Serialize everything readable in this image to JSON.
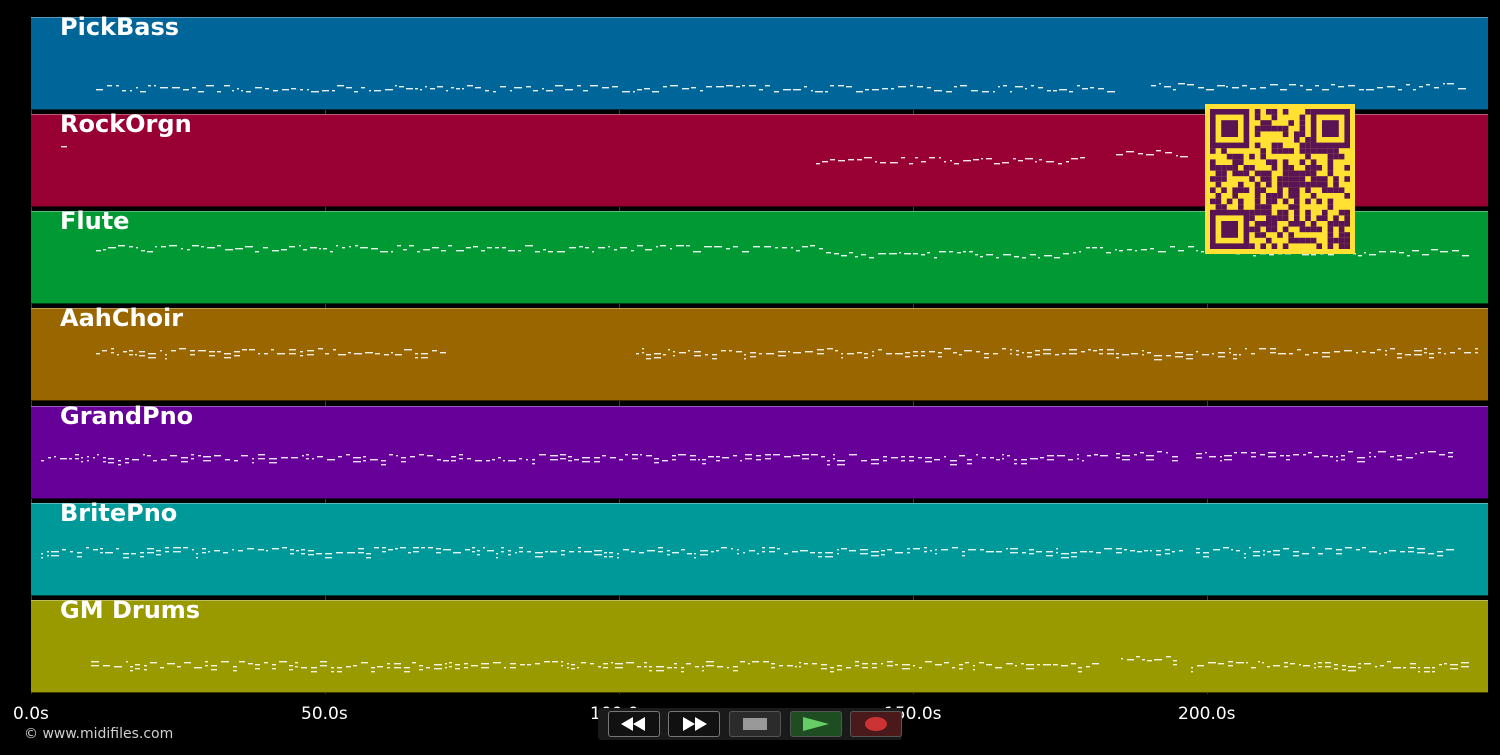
{
  "tracks": [
    {
      "name": "PickBass",
      "color": "#006699"
    },
    {
      "name": "RockOrgn",
      "color": "#990033"
    },
    {
      "name": "Flute",
      "color": "#009933"
    },
    {
      "name": "AahChoir",
      "color": "#996600"
    },
    {
      "name": "GrandPno",
      "color": "#660099"
    },
    {
      "name": "BritePno",
      "color": "#009999"
    },
    {
      "name": "GM Drums",
      "color": "#999900"
    }
  ],
  "timeline": {
    "ticks": [
      "0.0s",
      "50.0s",
      "100.0s",
      "150.0s",
      "200.0s"
    ]
  },
  "credit": "© www.midifiles.com",
  "transport": {
    "rewind_icon": "rewind-icon",
    "forward_icon": "fast-forward-icon",
    "stop_icon": "stop-icon",
    "play_icon": "play-icon",
    "record_icon": "record-icon",
    "play_color": "#66cc66",
    "record_color": "#cc3333"
  },
  "qr": {
    "color": "#ffe033",
    "dark": "#5a1454"
  }
}
